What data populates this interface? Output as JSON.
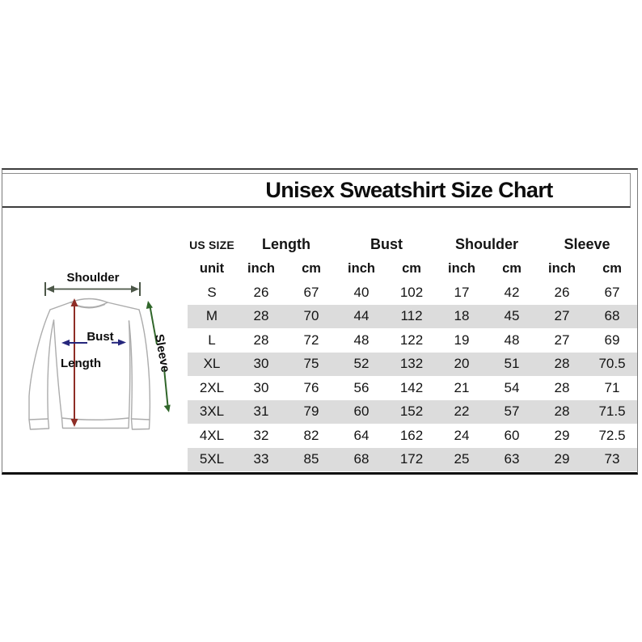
{
  "title": "Unisex Sweatshirt Size Chart",
  "diagram": {
    "labels": {
      "shoulder": "Shoulder",
      "bust": "Bust",
      "length": "Length",
      "sleeve": "Sleeve"
    },
    "colors": {
      "shirt_outline": "#acacac",
      "shoulder_arrow": "#4c5748",
      "bust_arrow": "#25267c",
      "length_arrow": "#8e2d26",
      "sleeve_arrow": "#30662a"
    }
  },
  "table": {
    "size_header": "US SIZE",
    "unit_label": "unit",
    "group_headers": [
      "Length",
      "Bust",
      "Shoulder",
      "Sleeve"
    ],
    "unit_headers": [
      "inch",
      "cm",
      "inch",
      "cm",
      "inch",
      "cm",
      "inch",
      "cm"
    ],
    "striped_color": "#dcdcdc",
    "rows": [
      {
        "size": "S",
        "values": [
          "26",
          "67",
          "40",
          "102",
          "17",
          "42",
          "26",
          "67"
        ],
        "shaded": false
      },
      {
        "size": "M",
        "values": [
          "28",
          "70",
          "44",
          "112",
          "18",
          "45",
          "27",
          "68"
        ],
        "shaded": true
      },
      {
        "size": "L",
        "values": [
          "28",
          "72",
          "48",
          "122",
          "19",
          "48",
          "27",
          "69"
        ],
        "shaded": false
      },
      {
        "size": "XL",
        "values": [
          "30",
          "75",
          "52",
          "132",
          "20",
          "51",
          "28",
          "70.5"
        ],
        "shaded": true
      },
      {
        "size": "2XL",
        "values": [
          "30",
          "76",
          "56",
          "142",
          "21",
          "54",
          "28",
          "71"
        ],
        "shaded": false
      },
      {
        "size": "3XL",
        "values": [
          "31",
          "79",
          "60",
          "152",
          "22",
          "57",
          "28",
          "71.5"
        ],
        "shaded": true
      },
      {
        "size": "4XL",
        "values": [
          "32",
          "82",
          "64",
          "162",
          "24",
          "60",
          "29",
          "72.5"
        ],
        "shaded": false
      },
      {
        "size": "5XL",
        "values": [
          "33",
          "85",
          "68",
          "172",
          "25",
          "63",
          "29",
          "73"
        ],
        "shaded": true
      }
    ]
  },
  "chart_data": {
    "type": "table",
    "title": "Unisex Sweatshirt Size Chart",
    "columns": [
      "US SIZE",
      "Length inch",
      "Length cm",
      "Bust inch",
      "Bust cm",
      "Shoulder inch",
      "Shoulder cm",
      "Sleeve inch",
      "Sleeve cm"
    ],
    "rows": [
      [
        "S",
        26,
        67,
        40,
        102,
        17,
        42,
        26,
        67
      ],
      [
        "M",
        28,
        70,
        44,
        112,
        18,
        45,
        27,
        68
      ],
      [
        "L",
        28,
        72,
        48,
        122,
        19,
        48,
        27,
        69
      ],
      [
        "XL",
        30,
        75,
        52,
        132,
        20,
        51,
        28,
        70.5
      ],
      [
        "2XL",
        30,
        76,
        56,
        142,
        21,
        54,
        28,
        71
      ],
      [
        "3XL",
        31,
        79,
        60,
        152,
        22,
        57,
        28,
        71.5
      ],
      [
        "4XL",
        32,
        82,
        64,
        162,
        24,
        60,
        29,
        72.5
      ],
      [
        "5XL",
        33,
        85,
        68,
        172,
        25,
        63,
        29,
        73
      ]
    ]
  }
}
